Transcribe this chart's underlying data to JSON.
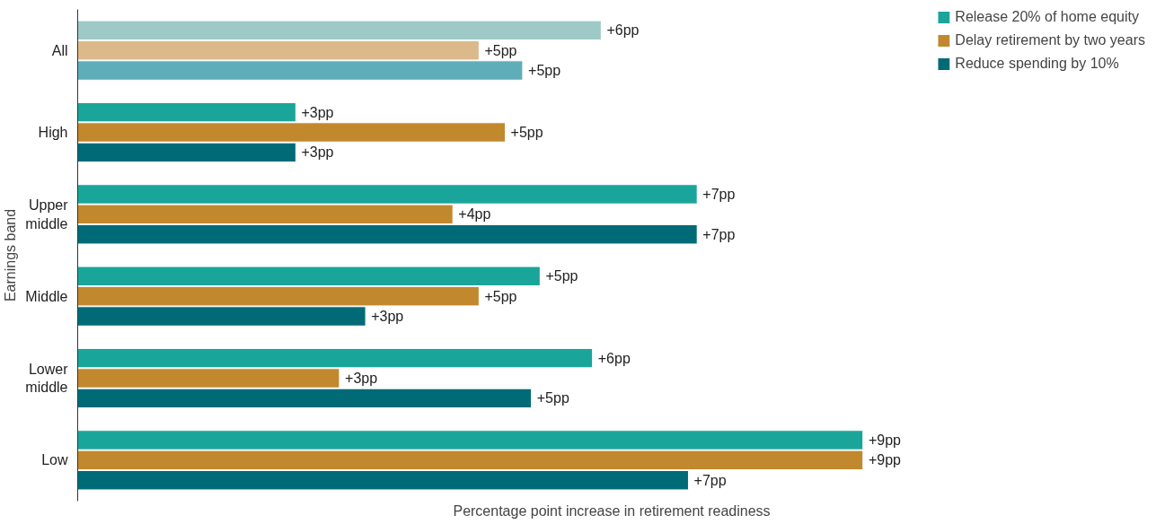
{
  "chart_data": {
    "type": "bar",
    "orientation": "horizontal",
    "ylabel": "Earnings band",
    "xlabel": "Percentage point increase in retirement readiness",
    "categories": [
      "All",
      "High",
      "Upper\nmiddle",
      "Middle",
      "Lower\nmiddle",
      "Low"
    ],
    "legend": "top right",
    "grid": false,
    "series": [
      {
        "name": "Release 20% of home equity",
        "color": "#1aa59b",
        "colors": [
          "#9ec9c6",
          "#1aa59b",
          "#1aa59b",
          "#1aa59b",
          "#1aa59b",
          "#1aa59b"
        ],
        "values": [
          6.0,
          2.5,
          7.1,
          5.3,
          5.9,
          9.0
        ],
        "value_labels": [
          "+6pp",
          "+3pp",
          "+7pp",
          "+5pp",
          "+6pp",
          "+9pp"
        ]
      },
      {
        "name": "Delay retirement by two years",
        "color": "#c2882e",
        "colors": [
          "#dcb98a",
          "#c2882e",
          "#c2882e",
          "#c2882e",
          "#c2882e",
          "#c2882e"
        ],
        "values": [
          4.6,
          4.9,
          4.3,
          4.6,
          3.0,
          9.0
        ],
        "value_labels": [
          "+5pp",
          "+5pp",
          "+4pp",
          "+5pp",
          "+3pp",
          "+9pp"
        ]
      },
      {
        "name": "Reduce spending by 10%",
        "color": "#006b77",
        "colors": [
          "#5fadb8",
          "#006b77",
          "#006b77",
          "#006b77",
          "#006b77",
          "#006b77"
        ],
        "values": [
          5.1,
          2.5,
          7.1,
          3.3,
          5.2,
          7.0
        ],
        "value_labels": [
          "+5pp",
          "+3pp",
          "+7pp",
          "+3pp",
          "+5pp",
          "+7pp"
        ]
      }
    ]
  }
}
